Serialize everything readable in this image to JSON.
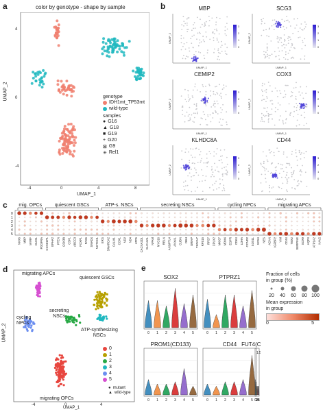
{
  "panels": {
    "a": {
      "label": "a",
      "title": "color by genotype - shape by sample",
      "xlabel": "UMAP_1",
      "ylabel": "UMAP_2",
      "xticks": [
        "-4",
        "0",
        "4",
        "8"
      ],
      "yticks": [
        "4",
        "0",
        "-4"
      ],
      "legend_genotype_title": "genotype",
      "genotypes": [
        {
          "label": "IDH1mt_TP53mt",
          "color": "#f08070"
        },
        {
          "label": "wild-type",
          "color": "#20b8c0"
        }
      ],
      "legend_samples_title": "samples",
      "samples": [
        {
          "label": "G16",
          "glyph": "●"
        },
        {
          "label": "G18",
          "glyph": "▲"
        },
        {
          "label": "G19",
          "glyph": "■"
        },
        {
          "label": "G20",
          "glyph": "+"
        },
        {
          "label": "G9",
          "glyph": "⊠"
        },
        {
          "label": "Rel1",
          "glyph": "✳"
        }
      ]
    },
    "b": {
      "label": "b",
      "genes": [
        "MBP",
        "SCG3",
        "CEMIP2",
        "COX3",
        "KLHDC8A",
        "CD44"
      ],
      "xlabel": "UMAP_1",
      "ylabel": "UMAP_2",
      "cbar_ticks": [
        "3",
        "2",
        "1",
        "0"
      ]
    },
    "c": {
      "label": "c",
      "groups": [
        "mig. OPCs",
        "quiescent GSCs",
        "ATP-s. NSCs",
        "secreting NSCs",
        "cycling NPCs",
        "migrating APCs"
      ],
      "rows": [
        "0",
        "1",
        "2",
        "3",
        "4",
        "5"
      ],
      "genes": [
        "NKX6",
        "MBP",
        "MYRF",
        "OLIG1",
        "PDGFRA",
        "CCND1P1",
        "EPHA2",
        "PTEN",
        "GSK3B",
        "CSF1",
        "ABCC3",
        "FOXP1",
        "PAX6",
        "SMAD4",
        "NOTCH1",
        "ERG",
        "SMARCA2",
        "CALM1",
        "COX1",
        "ND2",
        "ND4",
        "ATP6",
        "CACNA2D1",
        "SLC14A1",
        "NPAM",
        "MYO16",
        "RELN",
        "ANGPTL4",
        "ANXA1",
        "CUBN",
        "DBH",
        "GRIAP",
        "TSPAN7",
        "RPS15",
        "RPS7",
        "CPLX2",
        "MKI67",
        "MDM4",
        "EGFR",
        "CDK4",
        "LDHA",
        "CCND2",
        "SOX11",
        "SOX4",
        "NES",
        "ACAN",
        "IGFBP2",
        "VIM",
        "CD44",
        "TBX2",
        "SERPINE",
        "SOX9",
        "AQP4",
        "ATP1A2",
        "NAV2"
      ],
      "color_scale": [
        "#fde0dc",
        "#b22d00"
      ]
    },
    "d": {
      "label": "d",
      "xlabel": "UMAP_1",
      "ylabel": "UMAP_2",
      "xticks": [
        "-4",
        "0",
        "4"
      ],
      "cluster_labels": {
        "migrating_apcs": "migrating APCs",
        "quiescent_gscs": "quiescent  GSCs",
        "cycling_npcs": "cycling\nNPCs",
        "secreting_nscs": "secreting\nNSCs",
        "atp_nscs": "ATP-synthesizing\nNSCs",
        "migrating_opcs": "migrating OPCs"
      },
      "clusters": [
        {
          "label": "0",
          "color": "#e8463f"
        },
        {
          "label": "1",
          "color": "#b7a000"
        },
        {
          "label": "2",
          "color": "#27a844"
        },
        {
          "label": "3",
          "color": "#20b8c0"
        },
        {
          "label": "4",
          "color": "#6b8ef0"
        },
        {
          "label": "5",
          "color": "#d64fd1"
        }
      ],
      "shapes": [
        {
          "label": "mutant",
          "glyph": "●"
        },
        {
          "label": "wild-type",
          "glyph": "▲"
        }
      ]
    },
    "e": {
      "label": "e",
      "violins": [
        {
          "gene": "SOX2",
          "heights": [
            0.62,
            0.62,
            0.5,
            0.9,
            0.55,
            0.75
          ],
          "ymax": ""
        },
        {
          "gene": "PTPRZ1",
          "heights": [
            0.65,
            0.3,
            0.75,
            0.75,
            0.5,
            0.85
          ],
          "ymax": ""
        },
        {
          "gene": "PROM1(CD133)",
          "heights": [
            0.35,
            0.25,
            0.25,
            0.3,
            0.6,
            0.2
          ],
          "ymax": ""
        },
        {
          "gene": "CD44",
          "heights": [
            0.25,
            0.2,
            0.3,
            0.3,
            0.35,
            0.9
          ],
          "ymax": ""
        },
        {
          "gene": "FUT4(CD15)",
          "heights": [
            0.35,
            0.3,
            0.2,
            0.2,
            0.2,
            0.2
          ],
          "ymax": "1.5"
        }
      ],
      "xticks": [
        "0",
        "1",
        "2",
        "3",
        "4",
        "5"
      ],
      "size_legend_title": "Fraction of cells\nin group (%)",
      "size_values": [
        "20",
        "40",
        "60",
        "80",
        "100"
      ],
      "color_legend_title": "Mean expression\nin group",
      "color_ticks": [
        "0",
        "5"
      ]
    }
  }
}
